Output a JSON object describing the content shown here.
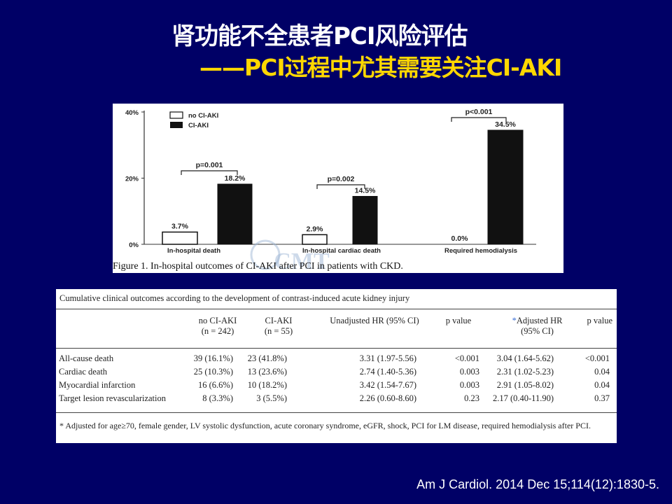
{
  "slide": {
    "title_line1": "肾功能不全患者PCI风险评估",
    "title_line2": "——PCI过程中尤其需要关注CI-AKI",
    "citation": "Am J Cardiol. 2014 Dec 15;114(12):1830-5.",
    "watermark": "CMT"
  },
  "chart_data": {
    "type": "bar",
    "title": "Figure 1. In-hospital outcomes of CI-AKI after PCI in patients with CKD.",
    "categories": [
      "In-hospital death",
      "In-hospital cardiac death",
      "Required hemodialysis"
    ],
    "series": [
      {
        "name": "no CI-AKI",
        "values": [
          3.7,
          2.9,
          0.0
        ],
        "labels": [
          "3.7%",
          "2.9%",
          "0.0%"
        ],
        "color": "#ffffff"
      },
      {
        "name": "CI-AKI",
        "values": [
          18.2,
          14.5,
          34.5
        ],
        "labels": [
          "18.2%",
          "14.5%",
          "34.5%"
        ],
        "color": "#111111"
      }
    ],
    "p_values": [
      "p=0.001",
      "p=0.002",
      "p<0.001"
    ],
    "yticks": [
      "40%",
      "20%",
      "0%"
    ],
    "ylim": [
      0,
      40
    ],
    "legend_position": "top-left"
  },
  "table": {
    "caption": "Cumulative clinical outcomes according to the development of contrast-induced acute kidney injury",
    "headers": [
      {
        "line1": "no CI-AKI",
        "line2": "(n = 242)"
      },
      {
        "line1": "CI-AKI",
        "line2": "(n = 55)"
      },
      {
        "line1": "Unadjusted HR (95% CI)",
        "line2": ""
      },
      {
        "line1": "p value",
        "line2": ""
      },
      {
        "line1": "Adjusted HR",
        "line2": "(95% CI)",
        "marker": "*"
      },
      {
        "line1": "p value",
        "line2": ""
      }
    ],
    "rows": [
      {
        "label": "All-cause death",
        "cells": [
          "39 (16.1%)",
          "23 (41.8%)",
          "3.31 (1.97-5.56)",
          "<0.001",
          "3.04 (1.64-5.62)",
          "<0.001"
        ]
      },
      {
        "label": "Cardiac death",
        "cells": [
          "25 (10.3%)",
          "13 (23.6%)",
          "2.74 (1.40-5.36)",
          "0.003",
          "2.31 (1.02-5.23)",
          "0.04"
        ]
      },
      {
        "label": "Myocardial infarction",
        "cells": [
          "16 (6.6%)",
          "10 (18.2%)",
          "3.42 (1.54-7.67)",
          "0.003",
          "2.91 (1.05-8.02)",
          "0.04"
        ]
      },
      {
        "label": "Target lesion revascularization",
        "cells": [
          "8 (3.3%)",
          "3 (5.5%)",
          "2.26 (0.60-8.60)",
          "0.23",
          "2.17 (0.40-11.90)",
          "0.37"
        ]
      }
    ],
    "footnote": "* Adjusted for age≥70, female gender, LV systolic dysfunction, acute coronary syndrome, eGFR, shock, PCI for LM disease, required hemodialysis after PCI."
  }
}
